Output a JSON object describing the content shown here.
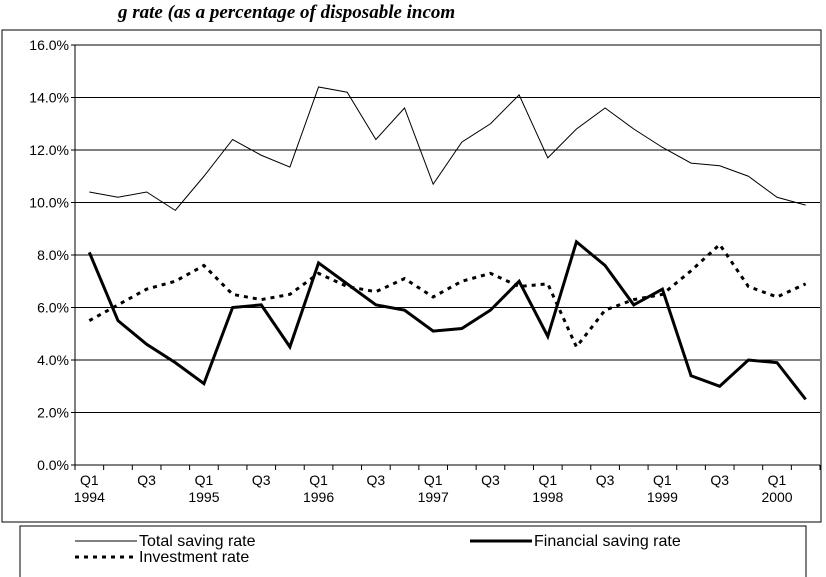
{
  "chart_data": {
    "type": "line",
    "title": "g rate (as a percentage of disposable incom",
    "categories": [
      "Q1 1994",
      null,
      "Q3",
      null,
      "Q1 1995",
      null,
      "Q3",
      null,
      "Q1 1996",
      null,
      "Q3",
      null,
      "Q1 1997",
      null,
      "Q3",
      null,
      "Q1 1998",
      null,
      "Q3",
      null,
      "Q1 1999",
      null,
      "Q3",
      null,
      "Q1 2000",
      null
    ],
    "series": [
      {
        "name": "Total saving rate",
        "color": "#000000",
        "width": 1,
        "dash": "none",
        "values": [
          10.4,
          10.2,
          10.4,
          9.7,
          11.0,
          12.4,
          11.8,
          11.35,
          14.4,
          14.2,
          12.4,
          13.6,
          10.7,
          12.3,
          13.0,
          14.1,
          11.7,
          12.8,
          13.6,
          12.8,
          12.1,
          11.5,
          11.4,
          11.0,
          10.2,
          9.9
        ]
      },
      {
        "name": "Financial saving rate",
        "color": "#000000",
        "width": 3,
        "dash": "none",
        "values": [
          8.1,
          5.5,
          4.6,
          3.9,
          3.1,
          6.0,
          6.1,
          4.5,
          7.7,
          6.9,
          6.1,
          5.9,
          5.1,
          5.2,
          5.9,
          7.0,
          4.9,
          8.5,
          7.6,
          6.1,
          6.7,
          3.4,
          3.0,
          4.0,
          3.9,
          2.5
        ]
      },
      {
        "name": "Investment rate",
        "color": "#000000",
        "width": 3,
        "dash": "4 5",
        "values": [
          5.5,
          6.1,
          6.7,
          7.0,
          7.6,
          6.5,
          6.3,
          6.5,
          7.3,
          6.8,
          6.6,
          7.1,
          6.4,
          7.0,
          7.3,
          6.8,
          6.9,
          4.5,
          5.9,
          6.3,
          6.5,
          7.4,
          8.4,
          6.8,
          6.4,
          6.9
        ]
      }
    ],
    "ylim": [
      0,
      16
    ],
    "yticks": [
      {
        "value": 0,
        "label": "0.0%"
      },
      {
        "value": 2,
        "label": "2.0%"
      },
      {
        "value": 4,
        "label": "4.0%"
      },
      {
        "value": 6,
        "label": "6.0%"
      },
      {
        "value": 8,
        "label": "8.0%"
      },
      {
        "value": 10,
        "label": "10.0%"
      },
      {
        "value": 12,
        "label": "12.0%"
      },
      {
        "value": 14,
        "label": "14.0%"
      },
      {
        "value": 16,
        "label": "16.0%"
      }
    ],
    "grid": true,
    "legend": "bottom"
  }
}
